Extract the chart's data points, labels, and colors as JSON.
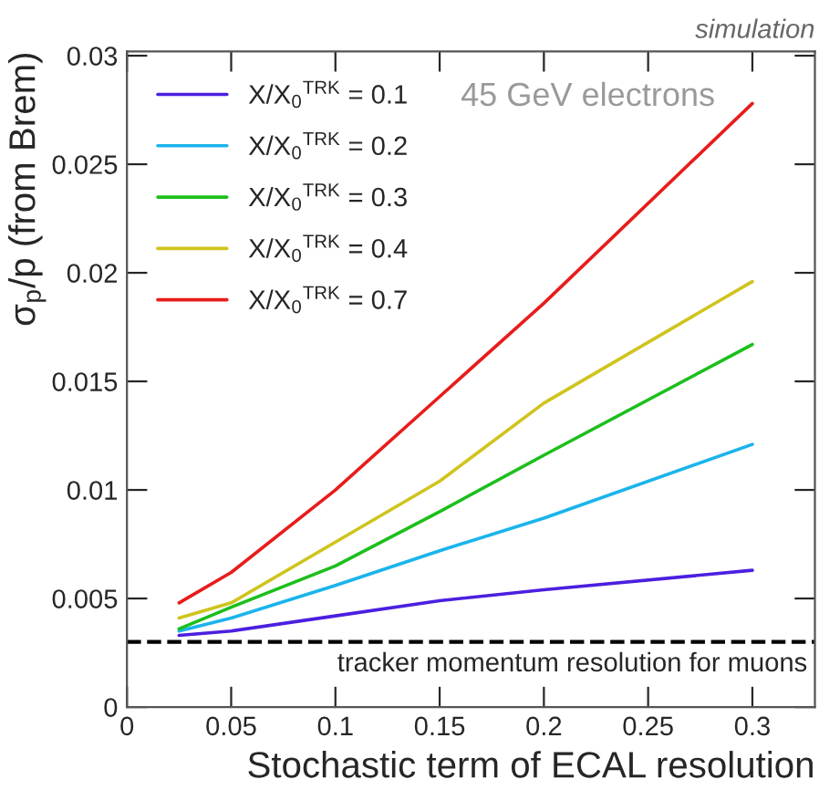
{
  "chart_data": {
    "type": "line",
    "xlabel": "Stochastic term of ECAL resolution",
    "ylabel": "σ$_{p}$/p (from Brem)",
    "x": [
      0.025,
      0.05,
      0.1,
      0.15,
      0.2,
      0.3
    ],
    "series": [
      {
        "name": "X/X$_{0}$$^{TRK}$ = 0.1",
        "color": "#4b1fe0",
        "values": [
          0.0033,
          0.0035,
          0.0042,
          0.0049,
          0.0054,
          0.0063
        ]
      },
      {
        "name": "X/X$_{0}$$^{TRK}$ = 0.2",
        "color": "#1ab4ec",
        "values": [
          0.0035,
          0.0041,
          0.0056,
          0.0072,
          0.0087,
          0.0121
        ]
      },
      {
        "name": "X/X$_{0}$$^{TRK}$ = 0.3",
        "color": "#1cbf1c",
        "values": [
          0.0036,
          0.0046,
          0.0065,
          0.009,
          0.0116,
          0.0167
        ]
      },
      {
        "name": "X/X$_{0}$$^{TRK}$ = 0.4",
        "color": "#cfc41e",
        "values": [
          0.0041,
          0.0048,
          0.0076,
          0.0104,
          0.014,
          0.0196
        ]
      },
      {
        "name": "X/X$_{0}$$^{TRK}$ = 0.7",
        "color": "#e81c1c",
        "values": [
          0.0048,
          0.0062,
          0.01,
          0.0143,
          0.0186,
          0.0278
        ]
      }
    ],
    "xlim": [
      0,
      0.33
    ],
    "ylim": [
      0,
      0.0302
    ],
    "xticks": [
      0,
      0.05,
      0.1,
      0.15,
      0.2,
      0.25,
      0.3
    ],
    "yticks": [
      0,
      0.005,
      0.01,
      0.015,
      0.02,
      0.025,
      0.03
    ],
    "ref_lines": [
      {
        "axis": "y",
        "value": 0.003,
        "label": "tracker momentum resolution for muons",
        "color": "#000000",
        "line_style": "dashed"
      }
    ],
    "annotations": [
      "simulation",
      "45 GeV electrons"
    ],
    "legend": "top left",
    "grid": false,
    "marker": "none",
    "line_style": "solid"
  }
}
